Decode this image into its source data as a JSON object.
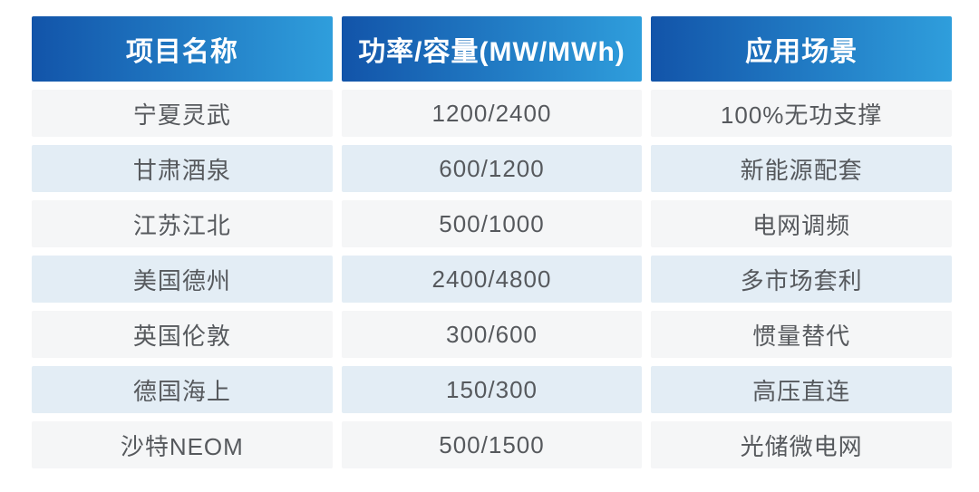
{
  "chart_data": {
    "type": "table",
    "title": "",
    "columns": [
      "项目名称",
      "功率/容量(MW/MWh)",
      "应用场景"
    ],
    "rows": [
      [
        "宁夏灵武",
        "1200/2400",
        "100%无功支撑"
      ],
      [
        "甘肃酒泉",
        "600/1200",
        "新能源配套"
      ],
      [
        "江苏江北",
        "500/1000",
        "电网调频"
      ],
      [
        "美国德州",
        "2400/4800",
        "多市场套利"
      ],
      [
        "英国伦敦",
        "300/600",
        "惯量替代"
      ],
      [
        "德国海上",
        "150/300",
        "高压直连"
      ],
      [
        "沙特NEOM",
        "500/1500",
        "光储微电网"
      ]
    ]
  },
  "colors": {
    "header_gradient_start": "#1254a9",
    "header_gradient_end": "#2f9edc",
    "header_text": "#ffffff",
    "row_odd_bg": "#f5f6f7",
    "row_even_bg": "#e3edf5",
    "body_text": "#56595d",
    "page_bg": "#ffffff"
  }
}
